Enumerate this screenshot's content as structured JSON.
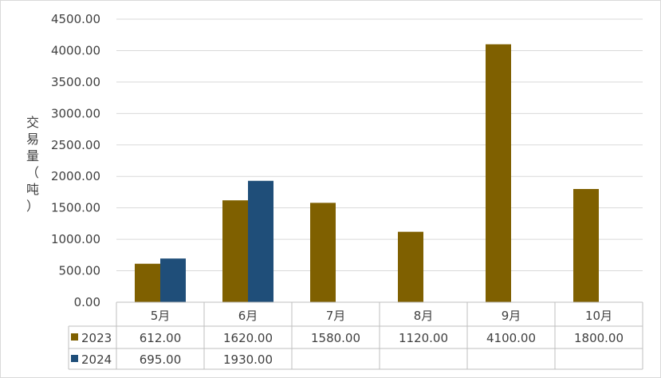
{
  "chart_data": {
    "type": "bar",
    "title": "",
    "xlabel": "",
    "ylabel": "交易量（吨）",
    "ylim": [
      0,
      4500
    ],
    "yticks": [
      "0.00",
      "500.00",
      "1000.00",
      "1500.00",
      "2000.00",
      "2500.00",
      "3000.00",
      "3500.00",
      "4000.00",
      "4500.00"
    ],
    "categories": [
      "5月",
      "6月",
      "7月",
      "8月",
      "9月",
      "10月"
    ],
    "grid": true,
    "legend": "data-table",
    "series": [
      {
        "name": "2023",
        "color": "#7f6000",
        "values": [
          612,
          1620,
          1580,
          1120,
          4100,
          1800
        ],
        "labels": [
          "612.00",
          "1620.00",
          "1580.00",
          "1120.00",
          "4100.00",
          "1800.00"
        ]
      },
      {
        "name": "2024",
        "color": "#1f4e79",
        "values": [
          695,
          1930,
          null,
          null,
          null,
          null
        ],
        "labels": [
          "695.00",
          "1930.00",
          "",
          "",
          "",
          ""
        ]
      }
    ]
  }
}
